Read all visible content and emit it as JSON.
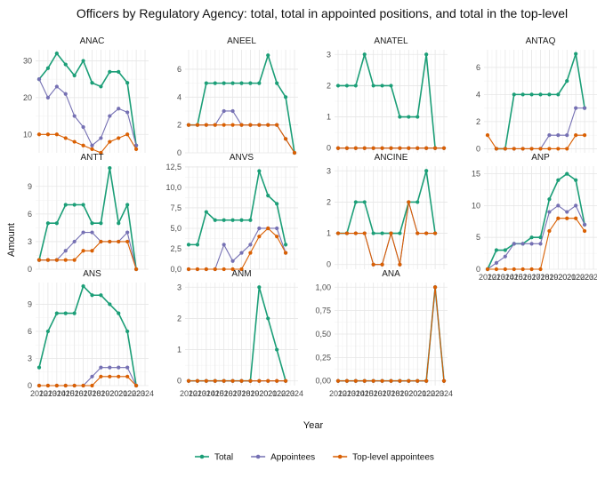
{
  "chart_data": {
    "type": "line",
    "title": "Officers by Regulatory Agency: total, total in appointed positions, and total in the top-level",
    "xlabel": "Year",
    "ylabel": "Amount",
    "x": [
      2012,
      2013,
      2014,
      2015,
      2016,
      2017,
      2018,
      2019,
      2020,
      2021,
      2022,
      2023,
      2024
    ],
    "x_tick_labels": [
      "2012",
      "2013",
      "2014",
      "2015",
      "2016",
      "2017",
      "2018",
      "2019",
      "2020",
      "2021",
      "2022",
      "2023",
      "2024"
    ],
    "legend": {
      "placement": "bottom",
      "entries": [
        "Total",
        "Appointees",
        "Top-level appointees"
      ]
    },
    "colors": {
      "Total": "#1b9e77",
      "Appointees": "#7570b3",
      "Top-level appointees": "#d95f02"
    },
    "grid": true,
    "panels": [
      {
        "name": "ANAC",
        "ylim": [
          5,
          33
        ],
        "y_ticks": [
          10,
          20,
          30
        ],
        "y_tick_labels": [
          "10",
          "20",
          "30"
        ],
        "series": [
          {
            "name": "Total",
            "values": [
              25,
              28,
              32,
              29,
              26,
              30,
              24,
              23,
              27,
              27,
              24,
              7
            ]
          },
          {
            "name": "Appointees",
            "values": [
              25,
              20,
              23,
              21,
              15,
              12,
              7,
              9,
              15,
              17,
              16,
              7
            ]
          },
          {
            "name": "Top-level appointees",
            "values": [
              10,
              10,
              10,
              9,
              8,
              7,
              6,
              5,
              8,
              9,
              10,
              6
            ]
          }
        ]
      },
      {
        "name": "ANEEL",
        "ylim": [
          0,
          7.4
        ],
        "y_ticks": [
          0,
          2,
          4,
          6
        ],
        "y_tick_labels": [
          "0",
          "2",
          "4",
          "6"
        ],
        "series": [
          {
            "name": "Total",
            "values": [
              2,
              2,
              5,
              5,
              5,
              5,
              5,
              5,
              5,
              7,
              5,
              4,
              0
            ]
          },
          {
            "name": "Appointees",
            "values": [
              2,
              2,
              2,
              2,
              3,
              3,
              2,
              2,
              2,
              2,
              2,
              1,
              0
            ]
          },
          {
            "name": "Top-level appointees",
            "values": [
              2,
              2,
              2,
              2,
              2,
              2,
              2,
              2,
              2,
              2,
              2,
              1,
              0
            ]
          }
        ]
      },
      {
        "name": "ANATEL",
        "ylim": [
          -0.15,
          3.15
        ],
        "y_ticks": [
          0,
          1,
          2,
          3
        ],
        "y_tick_labels": [
          "0",
          "1",
          "2",
          "3"
        ],
        "series": [
          {
            "name": "Total",
            "values": [
              2,
              2,
              2,
              3,
              2,
              2,
              2,
              1,
              1,
              1,
              3,
              0
            ]
          },
          {
            "name": "Appointees",
            "values": [
              0,
              0,
              0,
              0,
              0,
              0,
              0,
              0,
              0,
              0,
              0,
              0,
              0
            ]
          },
          {
            "name": "Top-level appointees",
            "values": [
              0,
              0,
              0,
              0,
              0,
              0,
              0,
              0,
              0,
              0,
              0,
              0,
              0
            ]
          }
        ]
      },
      {
        "name": "ANTAQ",
        "ylim": [
          -0.3,
          7.3
        ],
        "y_ticks": [
          0,
          2,
          4,
          6
        ],
        "y_tick_labels": [
          "0",
          "2",
          "4",
          "6"
        ],
        "series": [
          {
            "name": "Total",
            "values": [
              null,
              0,
              0,
              4,
              4,
              4,
              4,
              4,
              4,
              5,
              7,
              3
            ]
          },
          {
            "name": "Appointees",
            "values": [
              null,
              0,
              0,
              0,
              0,
              0,
              0,
              1,
              1,
              1,
              3,
              3
            ]
          },
          {
            "name": "Top-level appointees",
            "values": [
              1,
              0,
              0,
              0,
              0,
              0,
              0,
              0,
              0,
              0,
              1,
              1
            ]
          }
        ]
      },
      {
        "name": "ANTT",
        "ylim": [
          0,
          11.2
        ],
        "y_ticks": [
          0,
          3,
          6,
          9
        ],
        "y_tick_labels": [
          "0",
          "3",
          "6",
          "9"
        ],
        "series": [
          {
            "name": "Total",
            "values": [
              1,
              5,
              5,
              7,
              7,
              7,
              5,
              5,
              11,
              5,
              7,
              0
            ]
          },
          {
            "name": "Appointees",
            "values": [
              1,
              1,
              1,
              2,
              3,
              4,
              4,
              3,
              3,
              3,
              4,
              0
            ]
          },
          {
            "name": "Top-level appointees",
            "values": [
              1,
              1,
              1,
              1,
              1,
              2,
              2,
              3,
              3,
              3,
              3,
              0
            ]
          }
        ]
      },
      {
        "name": "ANVS",
        "ylim": [
          0,
          12.6
        ],
        "y_ticks": [
          0,
          2.5,
          5,
          7.5,
          10,
          12.5
        ],
        "y_tick_labels": [
          "0,0",
          "2,5",
          "5,0",
          "7,5",
          "10,0",
          "12,5"
        ],
        "series": [
          {
            "name": "Total",
            "values": [
              3,
              3,
              7,
              6,
              6,
              6,
              6,
              6,
              12,
              9,
              8,
              3
            ]
          },
          {
            "name": "Appointees",
            "values": [
              0,
              0,
              0,
              0,
              3,
              1,
              2,
              3,
              5,
              5,
              5,
              2
            ]
          },
          {
            "name": "Top-level appointees",
            "values": [
              0,
              0,
              0,
              0,
              0,
              0,
              0,
              2,
              4,
              5,
              4,
              2
            ]
          }
        ]
      },
      {
        "name": "ANCINE",
        "ylim": [
          -0.15,
          3.15
        ],
        "y_ticks": [
          0,
          1,
          2,
          3
        ],
        "y_tick_labels": [
          "0",
          "1",
          "2",
          "3"
        ],
        "series": [
          {
            "name": "Total",
            "values": [
              1,
              1,
              2,
              2,
              1,
              1,
              1,
              1,
              2,
              2,
              3,
              1
            ]
          },
          {
            "name": "Appointees",
            "values": [
              1,
              1,
              1,
              1,
              0,
              0,
              1,
              0,
              2,
              1,
              1,
              1
            ]
          },
          {
            "name": "Top-level appointees",
            "values": [
              1,
              1,
              1,
              1,
              0,
              0,
              1,
              0,
              2,
              1,
              1,
              1
            ]
          }
        ]
      },
      {
        "name": "ANP",
        "ylim": [
          0,
          16.2
        ],
        "y_ticks": [
          0,
          5,
          10,
          15
        ],
        "y_tick_labels": [
          "0",
          "5",
          "10",
          "15"
        ],
        "series": [
          {
            "name": "Total",
            "values": [
              0,
              3,
              3,
              4,
              4,
              5,
              5,
              11,
              14,
              15,
              14,
              7
            ]
          },
          {
            "name": "Appointees",
            "values": [
              0,
              1,
              2,
              4,
              4,
              4,
              4,
              9,
              10,
              9,
              10,
              7
            ]
          },
          {
            "name": "Top-level appointees",
            "values": [
              0,
              0,
              0,
              0,
              0,
              0,
              0,
              6,
              8,
              8,
              8,
              6
            ]
          }
        ]
      },
      {
        "name": "ANS",
        "ylim": [
          0,
          11.4
        ],
        "y_ticks": [
          0,
          3,
          6,
          9
        ],
        "y_tick_labels": [
          "0",
          "3",
          "6",
          "9"
        ],
        "series": [
          {
            "name": "Total",
            "values": [
              2,
              6,
              8,
              8,
              8,
              11,
              10,
              10,
              9,
              8,
              6,
              0
            ]
          },
          {
            "name": "Appointees",
            "values": [
              0,
              0,
              0,
              0,
              0,
              0,
              1,
              2,
              2,
              2,
              2,
              0
            ]
          },
          {
            "name": "Top-level appointees",
            "values": [
              0,
              0,
              0,
              0,
              0,
              0,
              0,
              1,
              1,
              1,
              1,
              0
            ]
          }
        ]
      },
      {
        "name": "ANM",
        "ylim": [
          -0.15,
          3.15
        ],
        "y_ticks": [
          0,
          1,
          2,
          3
        ],
        "y_tick_labels": [
          "0",
          "1",
          "2",
          "3"
        ],
        "series": [
          {
            "name": "Total",
            "values": [
              0,
              0,
              0,
              0,
              0,
              0,
              0,
              0,
              3,
              2,
              1,
              0
            ]
          },
          {
            "name": "Appointees",
            "values": [
              0,
              0,
              0,
              0,
              0,
              0,
              0,
              0,
              0,
              0,
              0,
              0
            ]
          },
          {
            "name": "Top-level appointees",
            "values": [
              0,
              0,
              0,
              0,
              0,
              0,
              0,
              0,
              0,
              0,
              0,
              0
            ]
          }
        ]
      },
      {
        "name": "ANA",
        "ylim": [
          -0.05,
          1.05
        ],
        "y_ticks": [
          0,
          0.25,
          0.5,
          0.75,
          1
        ],
        "y_tick_labels": [
          "0,00",
          "0,25",
          "0,50",
          "0,75",
          "1,00"
        ],
        "series": [
          {
            "name": "Total",
            "values": [
              0,
              0,
              0,
              0,
              0,
              0,
              0,
              0,
              0,
              0,
              0,
              1,
              0
            ]
          },
          {
            "name": "Appointees",
            "values": [
              0,
              0,
              0,
              0,
              0,
              0,
              0,
              0,
              0,
              0,
              0,
              1,
              0
            ]
          },
          {
            "name": "Top-level appointees",
            "values": [
              0,
              0,
              0,
              0,
              0,
              0,
              0,
              0,
              0,
              0,
              0,
              1,
              0
            ]
          }
        ]
      }
    ]
  }
}
